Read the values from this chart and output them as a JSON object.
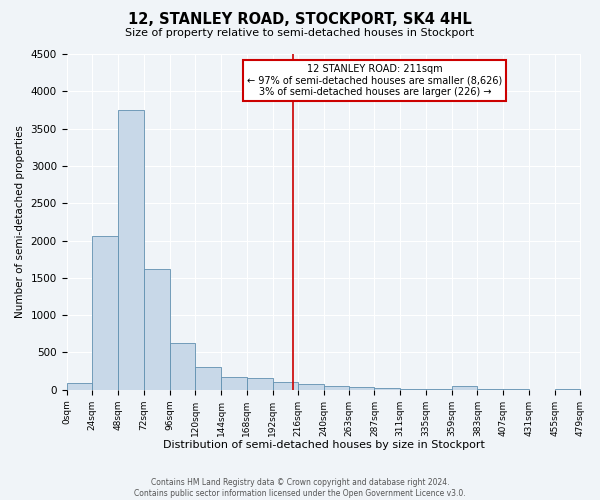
{
  "title": "12, STANLEY ROAD, STOCKPORT, SK4 4HL",
  "subtitle": "Size of property relative to semi-detached houses in Stockport",
  "xlabel": "Distribution of semi-detached houses by size in Stockport",
  "ylabel": "Number of semi-detached properties",
  "bar_color": "#c8d8e8",
  "bar_edge_color": "#6090b0",
  "background_color": "#f0f4f8",
  "grid_color": "#ffffff",
  "property_line_x": 211,
  "property_line_color": "#cc0000",
  "annotation_title": "12 STANLEY ROAD: 211sqm",
  "annotation_line1": "← 97% of semi-detached houses are smaller (8,626)",
  "annotation_line2": "3% of semi-detached houses are larger (226) →",
  "annotation_box_color": "#cc0000",
  "bin_edges": [
    0,
    24,
    48,
    72,
    96,
    120,
    144,
    168,
    192,
    216,
    240,
    263,
    287,
    311,
    335,
    359,
    383,
    407,
    431,
    455,
    479
  ],
  "bar_heights": [
    90,
    2065,
    3750,
    1620,
    630,
    300,
    165,
    155,
    110,
    80,
    55,
    40,
    25,
    10,
    5,
    45,
    5,
    5,
    0,
    5
  ],
  "ylim": [
    0,
    4500
  ],
  "yticks": [
    0,
    500,
    1000,
    1500,
    2000,
    2500,
    3000,
    3500,
    4000,
    4500
  ],
  "footer_line1": "Contains HM Land Registry data © Crown copyright and database right 2024.",
  "footer_line2": "Contains public sector information licensed under the Open Government Licence v3.0."
}
